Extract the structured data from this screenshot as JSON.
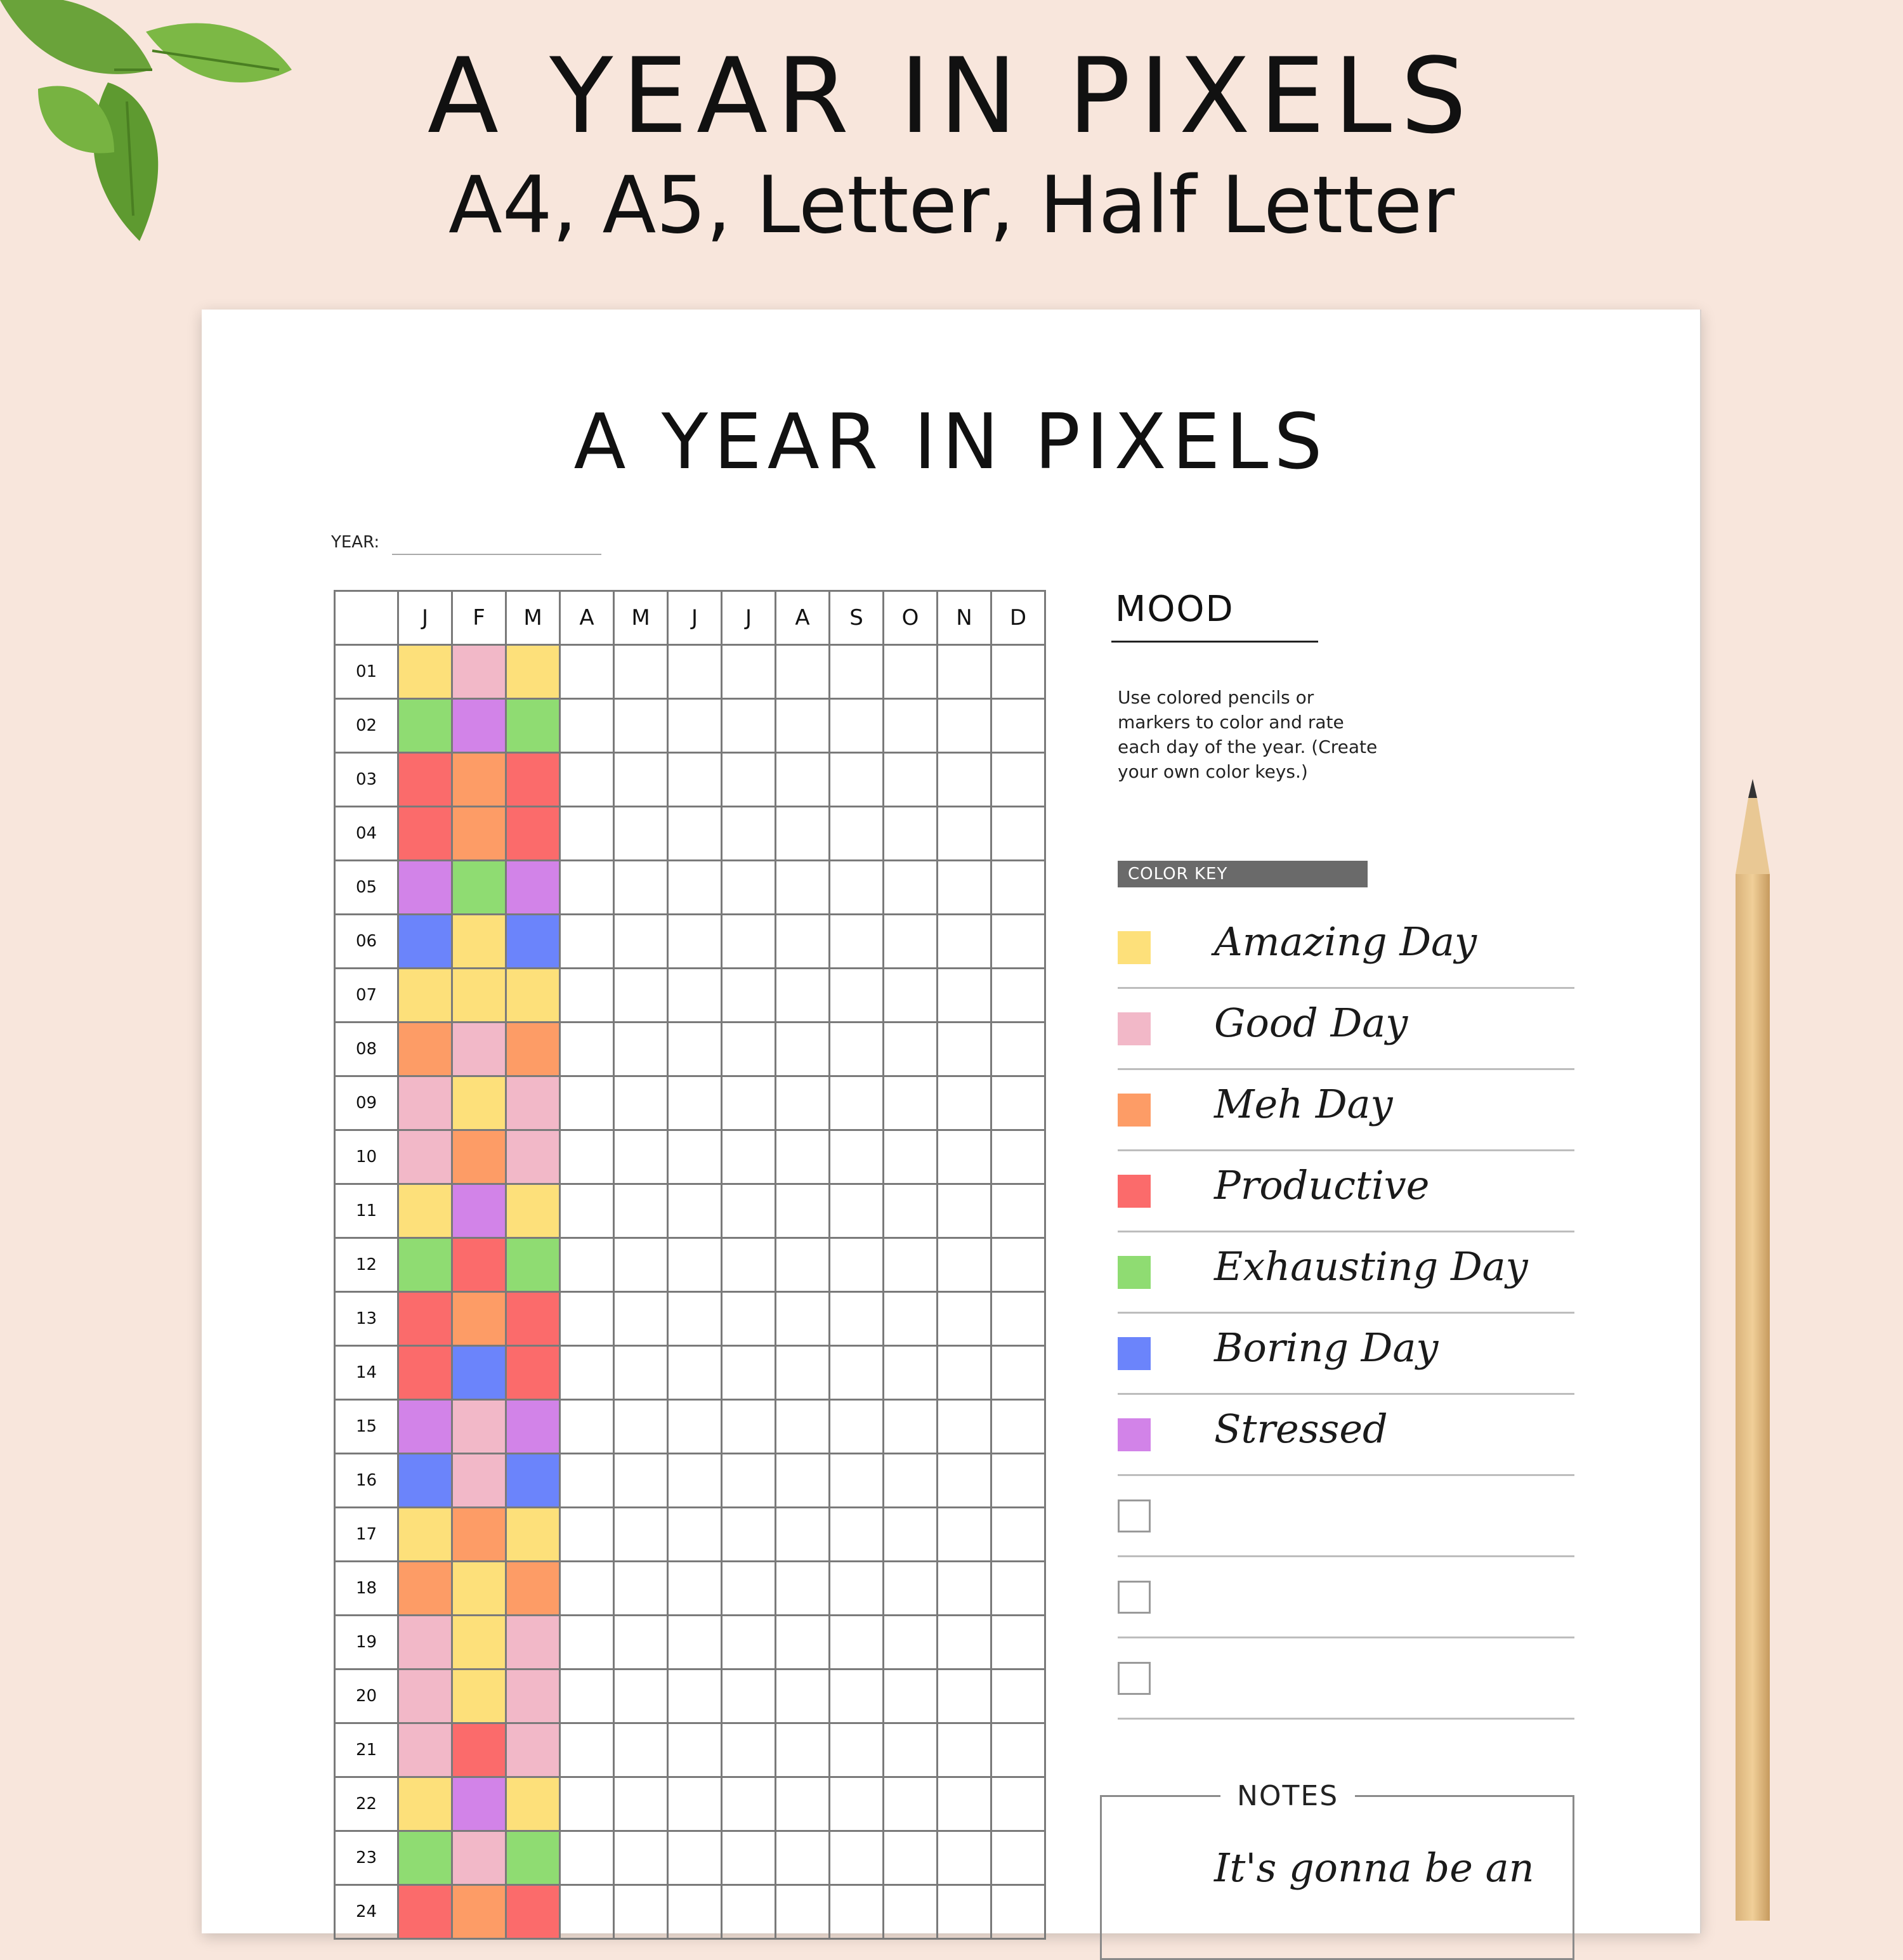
{
  "hero": {
    "title": "A YEAR IN PIXELS",
    "subtitle": "A4, A5, Letter, Half Letter"
  },
  "sheet": {
    "title": "A YEAR IN PIXELS",
    "year_label": "YEAR:"
  },
  "months": [
    "J",
    "F",
    "M",
    "A",
    "M",
    "J",
    "J",
    "A",
    "S",
    "O",
    "N",
    "D"
  ],
  "days": [
    "01",
    "02",
    "03",
    "04",
    "05",
    "06",
    "07",
    "08",
    "09",
    "10",
    "11",
    "12",
    "13",
    "14",
    "15",
    "16",
    "17",
    "18",
    "19",
    "20",
    "21",
    "22",
    "23",
    "24"
  ],
  "mood_colors": {
    "Y": "#fde07a",
    "P": "#f2b8c8",
    "O": "#fd9c66",
    "R": "#fb6b6b",
    "G": "#8fdc72",
    "B": "#6b84fb",
    "V": "#d283e8"
  },
  "filled_cells": [
    [
      "Y",
      "P",
      "Y"
    ],
    [
      "G",
      "V",
      "G"
    ],
    [
      "R",
      "O",
      "R"
    ],
    [
      "R",
      "O",
      "R"
    ],
    [
      "V",
      "G",
      "V"
    ],
    [
      "B",
      "Y",
      "B"
    ],
    [
      "Y",
      "Y",
      "Y"
    ],
    [
      "O",
      "P",
      "O"
    ],
    [
      "P",
      "Y",
      "P"
    ],
    [
      "P",
      "O",
      "P"
    ],
    [
      "Y",
      "V",
      "Y"
    ],
    [
      "G",
      "R",
      "G"
    ],
    [
      "R",
      "O",
      "R"
    ],
    [
      "R",
      "B",
      "R"
    ],
    [
      "V",
      "P",
      "V"
    ],
    [
      "B",
      "P",
      "B"
    ],
    [
      "Y",
      "O",
      "Y"
    ],
    [
      "O",
      "Y",
      "O"
    ],
    [
      "P",
      "Y",
      "P"
    ],
    [
      "P",
      "Y",
      "P"
    ],
    [
      "P",
      "R",
      "P"
    ],
    [
      "Y",
      "V",
      "Y"
    ],
    [
      "G",
      "P",
      "G"
    ],
    [
      "R",
      "O",
      "R"
    ]
  ],
  "mood": {
    "title": "MOOD",
    "instructions": "Use colored pencils or markers to color and rate each day of the year. (Create your own color keys.)",
    "color_key_label": "COLOR KEY",
    "keys": [
      {
        "label": "Amazing Day",
        "color": "#fde07a"
      },
      {
        "label": "Good Day",
        "color": "#f2b8c8"
      },
      {
        "label": "Meh Day",
        "color": "#fd9c66"
      },
      {
        "label": "Productive",
        "color": "#fb6b6b"
      },
      {
        "label": "Exhausting Day",
        "color": "#8fdc72"
      },
      {
        "label": "Boring Day",
        "color": "#6b84fb"
      },
      {
        "label": "Stressed",
        "color": "#d283e8"
      },
      {
        "label": "",
        "color": ""
      },
      {
        "label": "",
        "color": ""
      },
      {
        "label": "",
        "color": ""
      }
    ]
  },
  "notes": {
    "title": "NOTES",
    "text": "It's gonna be an"
  }
}
